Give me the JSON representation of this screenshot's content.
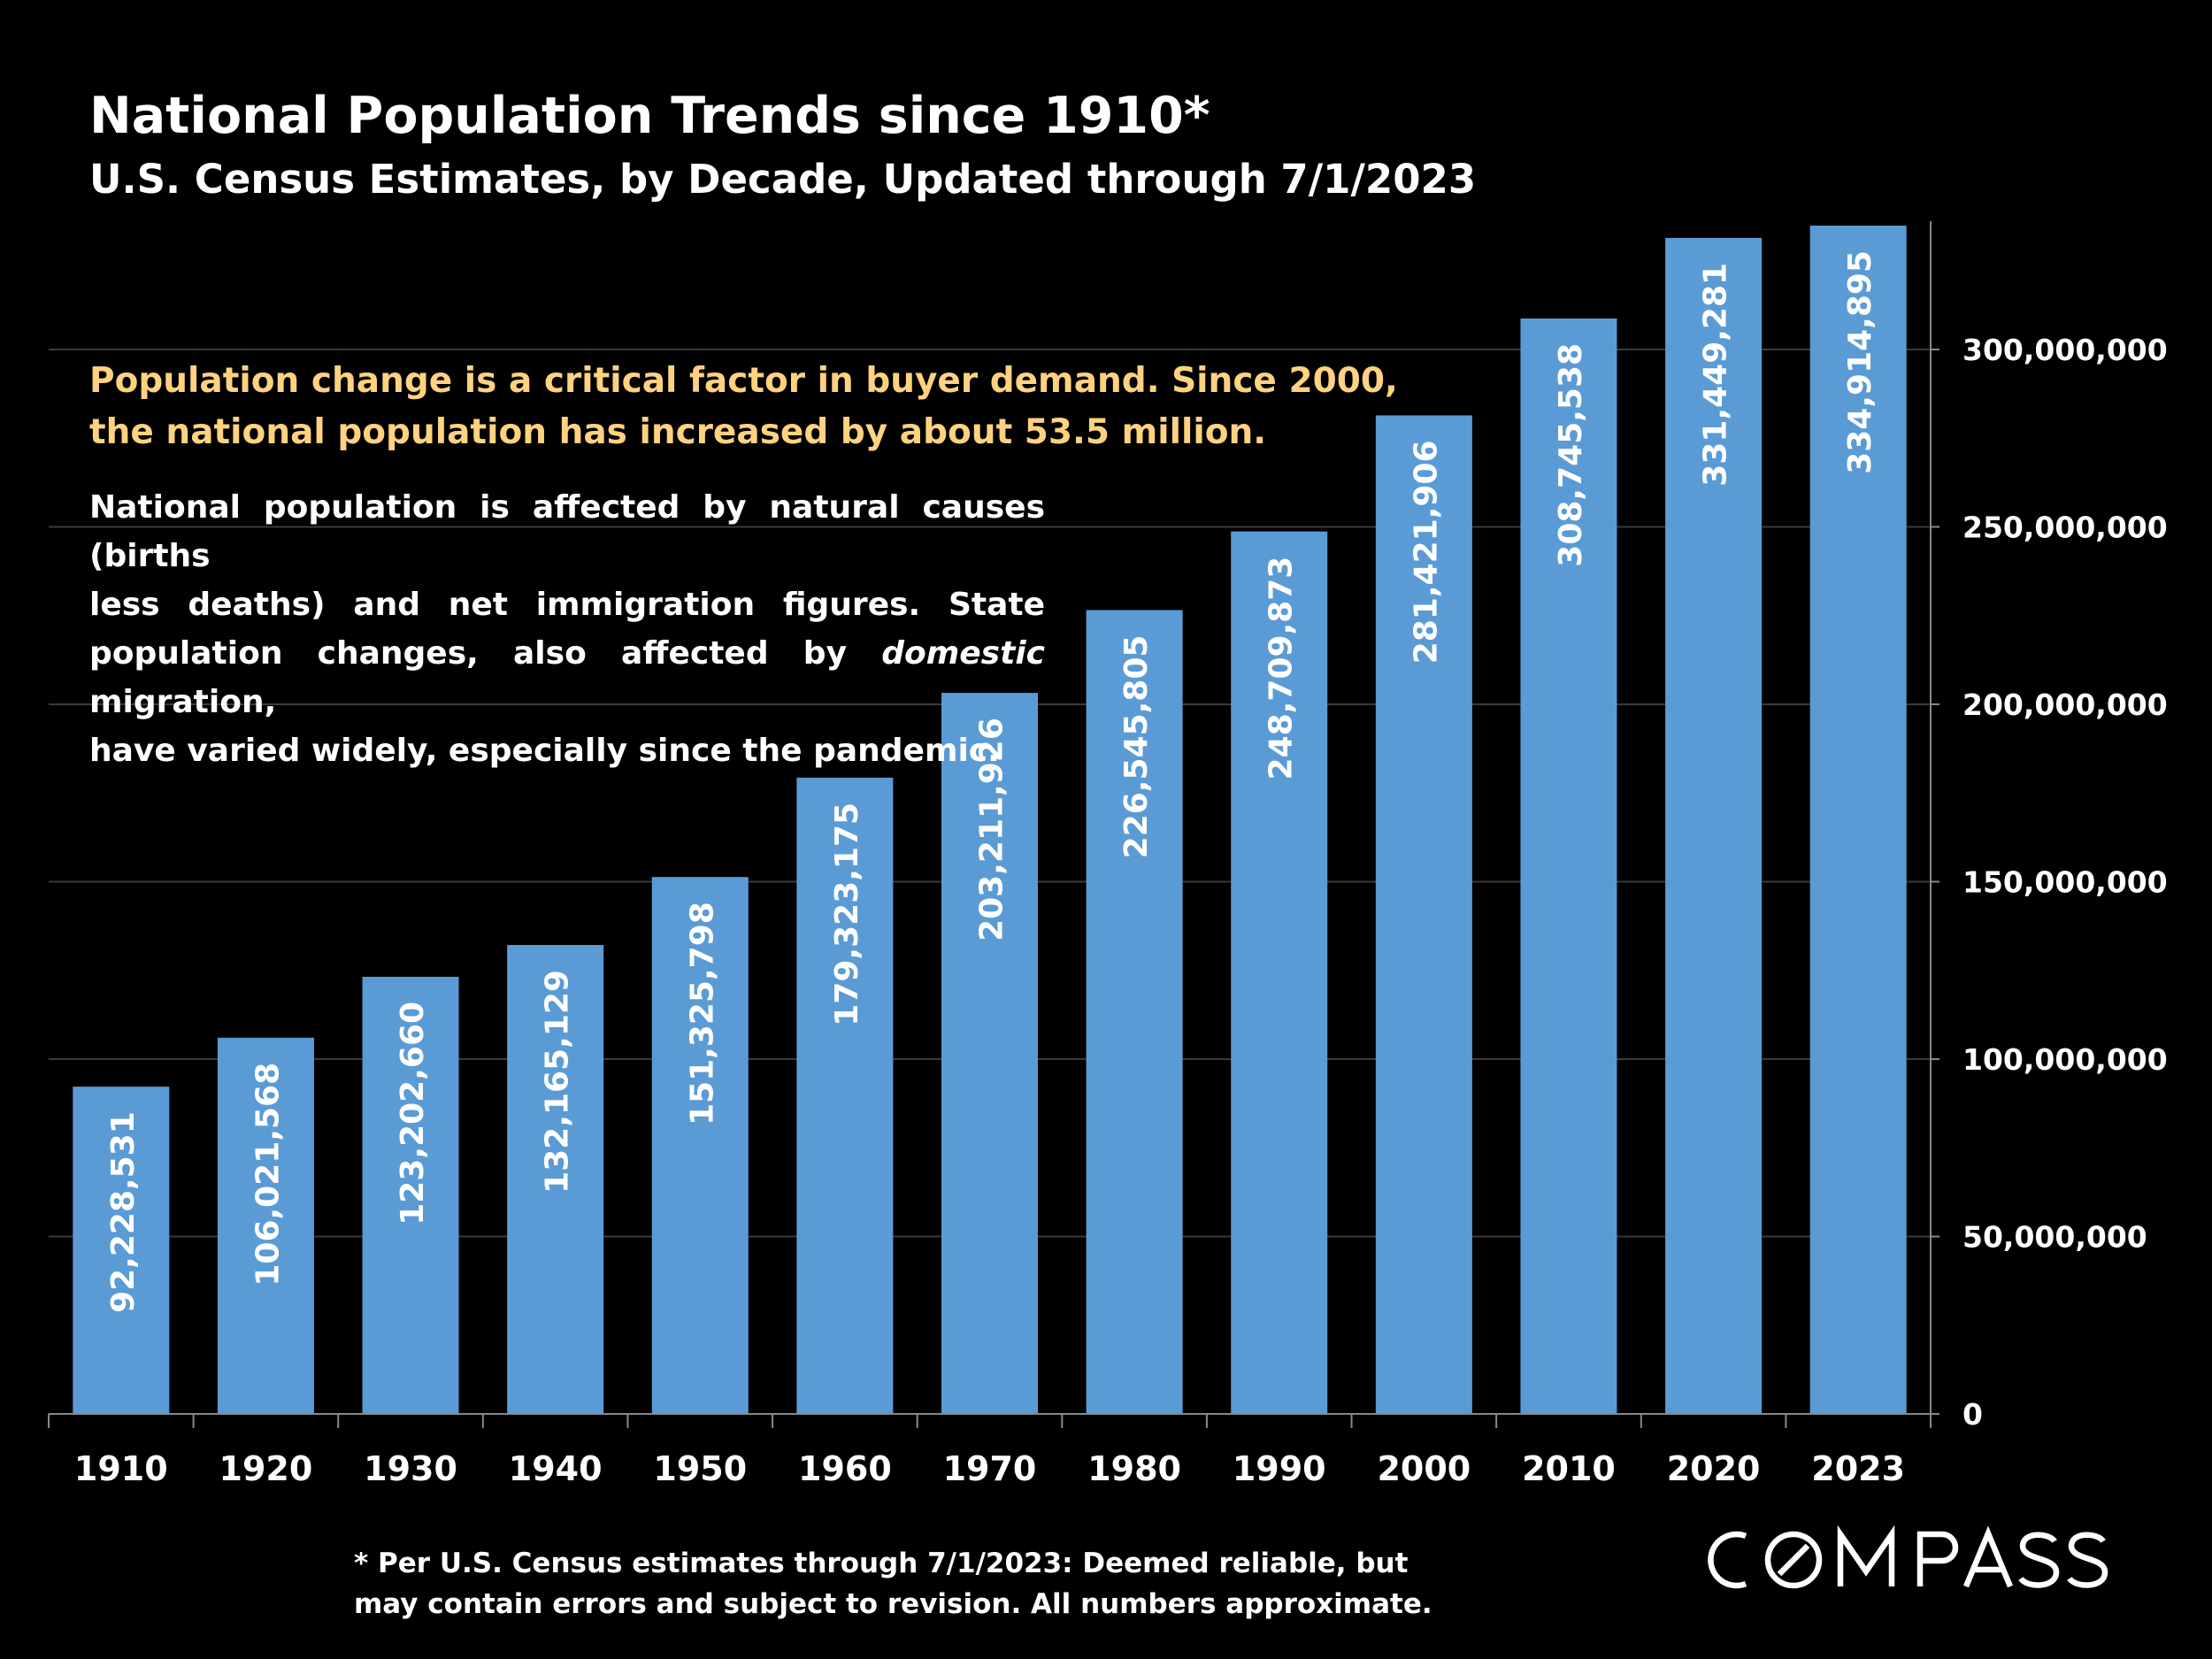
{
  "header": {
    "title": "National Population Trends since 1910*",
    "subtitle": "U.S. Census Estimates, by Decade, Updated through 7/1/2023"
  },
  "callout": {
    "line1": "Population change is a critical factor in buyer demand. Since 2000,",
    "line2": "the national population has increased by about 53.5 million."
  },
  "description": {
    "line1": "National population is affected by natural causes (births",
    "line2": "less deaths) and net immigration figures. State",
    "line3_before": "population changes, also affected by ",
    "line3_emphasis": "domestic",
    "line3_after": " migration,",
    "line4": "have varied widely, especially since the pandemic."
  },
  "footnote": {
    "line1": "* Per U.S. Census estimates through 7/1/2023: Deemed reliable, but",
    "line2": "may contain errors and subject to revision.  All numbers  approximate."
  },
  "brand": {
    "logo_text": "COMPASS"
  },
  "colors": {
    "background": "#000000",
    "bar": "#5B9BD5",
    "highlight": "#FFD280",
    "text": "#ffffff",
    "gridline": "#3a3a3a"
  },
  "chart_data": {
    "type": "bar",
    "categories": [
      "1910",
      "1920",
      "1930",
      "1940",
      "1950",
      "1960",
      "1970",
      "1980",
      "1990",
      "2000",
      "2010",
      "2020",
      "2023"
    ],
    "values": [
      92228531,
      106021568,
      123202660,
      132165129,
      151325798,
      179323175,
      203211926,
      226545805,
      248709873,
      281421906,
      308745538,
      331449281,
      334914895
    ],
    "data_labels": [
      "92,228,531",
      "106,021,568",
      "123,202,660",
      "132,165,129",
      "151,325,798",
      "179,323,175",
      "203,211,926",
      "226,545,805",
      "248,709,873",
      "281,421,906",
      "308,745,538",
      "331,449,281",
      "334,914,895"
    ],
    "y_ticks": [
      0,
      50000000,
      100000000,
      150000000,
      200000000,
      250000000,
      300000000
    ],
    "y_tick_labels": [
      "0",
      "50,000,000",
      "100,000,000",
      "150,000,000",
      "200,000,000",
      "250,000,000",
      "300,000,000"
    ],
    "ylim": [
      0,
      336000000
    ],
    "y_axis_side": "right",
    "grid": true,
    "legend": "none",
    "xlabel": "",
    "ylabel": ""
  }
}
